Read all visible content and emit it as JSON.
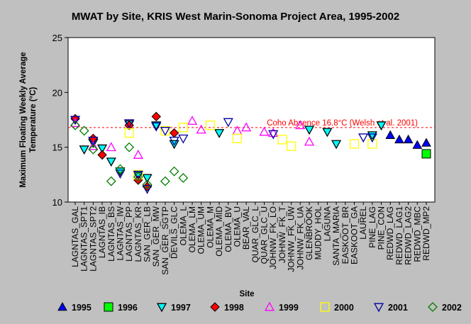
{
  "chart_data": {
    "type": "scatter",
    "title": "MWAT by Site, KRIS West Marin-Sonoma Project Area, 1995-2002",
    "xlabel": "Site",
    "ylabel_lines": [
      "Maximum Floating Weekly Average",
      "Temperature (°C)"
    ],
    "ylim": [
      10,
      25
    ],
    "yticks": [
      "10",
      "15",
      "20",
      "25"
    ],
    "grid": false,
    "legend_position": "bottom",
    "threshold": {
      "value": 16.8,
      "label": "Coho Absence 16.8°C (Welsh et al. 2001)",
      "color": "#ff0000"
    },
    "categories": [
      "LAGNTAS_GAL",
      "LAGNTAS_SPT1",
      "LAGNTAS_SPT2",
      "LAGNTAS_IB",
      "LAGNTAS_BS",
      "LAGNTAS_IW",
      "LAGNTAS_PP",
      "LAGNTAS_KR",
      "SAN_GER_LB",
      "SAN_GER_MW",
      "SAN_GER_SGTP",
      "DEVILS_GLC",
      "OLEMA_L",
      "OLEMA_LM",
      "OLEMA_UM",
      "OLEMA_M",
      "OLEMA_MID",
      "OLEMA_BV",
      "OLEMA_U",
      "BEAR_VAL",
      "QUAR_GLC_L",
      "QUAR_GLC_U",
      "JOHNW_FK_LO",
      "JOHNW_FK_T",
      "JOHNW_FK_UW",
      "JOHNW_FK_UA",
      "GLENBROOK",
      "MUDDY_HOL",
      "LAGUNA",
      "SANTA_MARIA",
      "EASKOOT_BR",
      "EASKOOT_GA",
      "LAUREL",
      "PINE_LAG",
      "PINE_CON",
      "REDWD_LAG",
      "REDWD_LAG1",
      "REDWD_LAG2",
      "REDWD_MBC",
      "REDWD_MP2"
    ],
    "series": [
      {
        "name": "1995",
        "marker": "triangle-up",
        "color": "#0000ff",
        "points": [
          [
            35,
            16.1
          ],
          [
            36,
            15.7
          ],
          [
            37,
            15.7
          ],
          [
            38,
            15.2
          ],
          [
            39,
            15.4
          ]
        ]
      },
      {
        "name": "1996",
        "marker": "square",
        "color": "#00ff00",
        "points": [
          [
            39,
            14.4
          ]
        ]
      },
      {
        "name": "1997",
        "marker": "triangle-down",
        "color": "#00ffff",
        "points": [
          [
            1,
            14.8
          ],
          [
            2,
            15.4
          ],
          [
            3,
            14.9
          ],
          [
            4,
            13.7
          ],
          [
            5,
            12.8
          ],
          [
            6,
            17.1
          ],
          [
            7,
            12.4
          ],
          [
            8,
            12.2
          ],
          [
            9,
            17.0
          ],
          [
            11,
            15.3
          ],
          [
            16,
            16.3
          ],
          [
            26,
            16.6
          ],
          [
            28,
            16.4
          ],
          [
            29,
            15.3
          ],
          [
            33,
            16.1
          ],
          [
            34,
            17.0
          ]
        ]
      },
      {
        "name": "1998",
        "marker": "diamond",
        "color": "#ff0000",
        "points": [
          [
            0,
            17.6
          ],
          [
            2,
            15.8
          ],
          [
            3,
            14.3
          ],
          [
            6,
            17.0
          ],
          [
            7,
            12.0
          ],
          [
            8,
            11.4
          ],
          [
            9,
            17.8
          ],
          [
            11,
            16.3
          ]
        ]
      },
      {
        "name": "1999",
        "marker": "triangle-up",
        "color": "#ff00ff",
        "points": [
          [
            0,
            17.2
          ],
          [
            2,
            15.1
          ],
          [
            4,
            15.0
          ],
          [
            7,
            14.3
          ],
          [
            13,
            17.4
          ],
          [
            14,
            16.6
          ],
          [
            18,
            16.5
          ],
          [
            19,
            16.8
          ],
          [
            21,
            16.4
          ],
          [
            22,
            16.3
          ],
          [
            25,
            17.0
          ],
          [
            26,
            15.5
          ]
        ]
      },
      {
        "name": "2000",
        "marker": "square",
        "color": "#ffff00",
        "points": [
          [
            6,
            16.3
          ],
          [
            7,
            12.5
          ],
          [
            10,
            16.5
          ],
          [
            12,
            16.8
          ],
          [
            15,
            17.0
          ],
          [
            18,
            15.8
          ],
          [
            23,
            15.7
          ],
          [
            24,
            15.1
          ],
          [
            31,
            15.3
          ],
          [
            33,
            15.3
          ]
        ]
      },
      {
        "name": "2001",
        "marker": "triangle-down",
        "color": "#0000a0",
        "points": [
          [
            0,
            17.5
          ],
          [
            2,
            15.6
          ],
          [
            5,
            12.6
          ],
          [
            6,
            17.2
          ],
          [
            7,
            12.5
          ],
          [
            8,
            11.2
          ],
          [
            9,
            16.9
          ],
          [
            10,
            16.5
          ],
          [
            11,
            15.6
          ],
          [
            12,
            15.8
          ],
          [
            17,
            17.3
          ],
          [
            22,
            16.2
          ],
          [
            32,
            15.9
          ],
          [
            33,
            15.9
          ]
        ]
      },
      {
        "name": "2002",
        "marker": "diamond",
        "color": "#008000",
        "points": [
          [
            0,
            17.0
          ],
          [
            1,
            16.5
          ],
          [
            2,
            14.8
          ],
          [
            4,
            11.9
          ],
          [
            5,
            13.0
          ],
          [
            6,
            15.0
          ],
          [
            7,
            12.3
          ],
          [
            8,
            11.6
          ],
          [
            10,
            11.9
          ],
          [
            11,
            12.8
          ],
          [
            12,
            12.2
          ]
        ]
      }
    ]
  }
}
